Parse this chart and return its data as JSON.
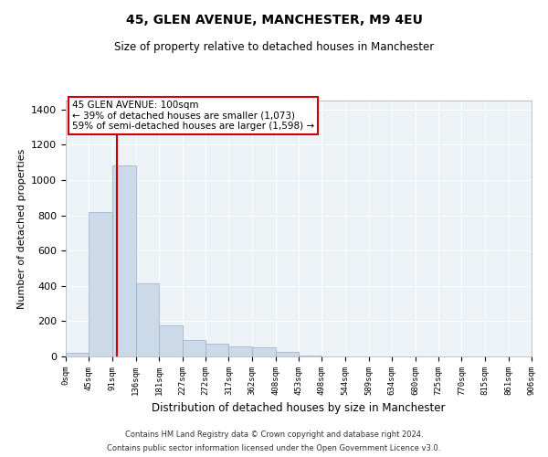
{
  "title": "45, GLEN AVENUE, MANCHESTER, M9 4EU",
  "subtitle": "Size of property relative to detached houses in Manchester",
  "xlabel": "Distribution of detached houses by size in Manchester",
  "ylabel": "Number of detached properties",
  "bar_edges": [
    0,
    45,
    91,
    136,
    181,
    227,
    272,
    317,
    362,
    408,
    453,
    498,
    544,
    589,
    634,
    680,
    725,
    770,
    815,
    861,
    906
  ],
  "bar_heights": [
    20,
    820,
    1080,
    415,
    175,
    95,
    70,
    55,
    50,
    25,
    5,
    0,
    0,
    0,
    0,
    0,
    0,
    0,
    0,
    0
  ],
  "bar_color": "#ccd9e8",
  "bar_edgecolor": "#99aec4",
  "property_size": 100,
  "vline_color": "#cc0000",
  "ylim": [
    0,
    1450
  ],
  "yticks": [
    0,
    200,
    400,
    600,
    800,
    1000,
    1200,
    1400
  ],
  "annotation_title": "45 GLEN AVENUE: 100sqm",
  "annotation_line1": "← 39% of detached houses are smaller (1,073)",
  "annotation_line2": "59% of semi-detached houses are larger (1,598) →",
  "annotation_box_color": "#cc0000",
  "background_color": "#edf2f7",
  "footer_line1": "Contains HM Land Registry data © Crown copyright and database right 2024.",
  "footer_line2": "Contains public sector information licensed under the Open Government Licence v3.0."
}
